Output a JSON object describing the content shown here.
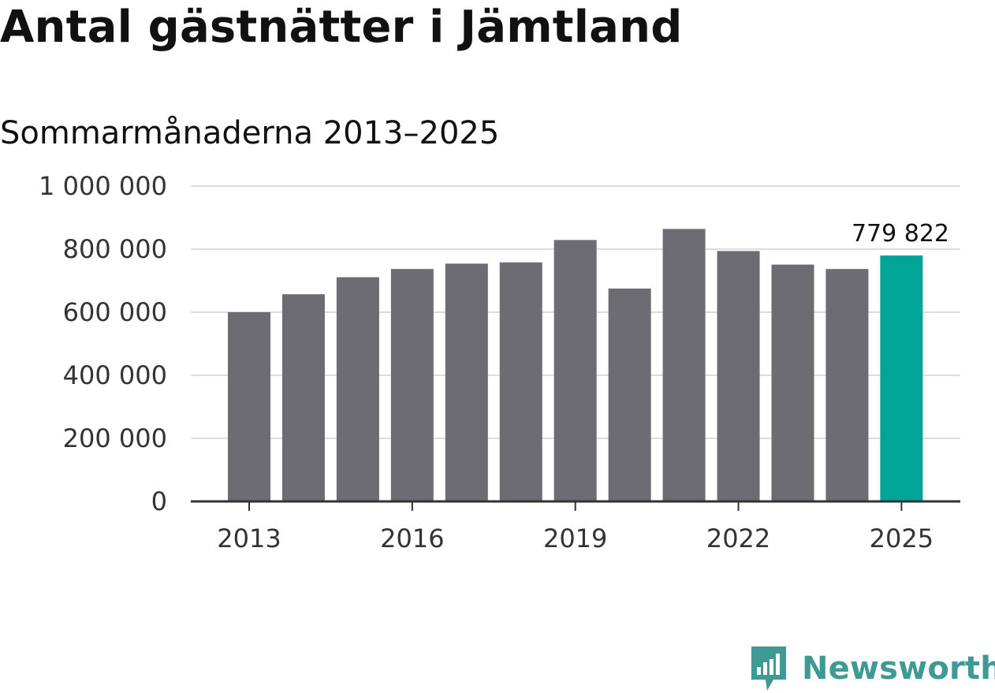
{
  "title": "Antal gästnätter i Jämtland",
  "subtitle": "Sommarmånaderna 2013–2025",
  "colors": {
    "bar": "#6d6c72",
    "highlight": "#00a598",
    "grid": "#dddddd",
    "axis": "#333333",
    "brand": "#3f9a95"
  },
  "chart_data": {
    "type": "bar",
    "title": "Antal gästnätter i Jämtland",
    "subtitle": "Sommarmånaderna 2013–2025",
    "xlabel": "",
    "ylabel": "",
    "categories": [
      "2013",
      "2014",
      "2015",
      "2016",
      "2017",
      "2018",
      "2019",
      "2020",
      "2021",
      "2022",
      "2023",
      "2024",
      "2025"
    ],
    "values": [
      600000,
      657000,
      711000,
      737000,
      754000,
      758000,
      829000,
      675000,
      864000,
      794000,
      751000,
      737000,
      779822
    ],
    "highlight_category": "2025",
    "annotation": {
      "category": "2025",
      "label": "779 822"
    },
    "ylim": [
      0,
      1000000
    ],
    "y_ticks": [
      0,
      200000,
      400000,
      600000,
      800000,
      1000000
    ],
    "y_tick_labels": [
      "0",
      "200 000",
      "400 000",
      "600 000",
      "800 000",
      "1 000 000"
    ],
    "x_tick_labels": [
      "2013",
      "2016",
      "2019",
      "2022",
      "2025"
    ],
    "grid": true,
    "legend": "none"
  },
  "branding": {
    "logo_text": "Newsworthy",
    "logo_icon": "newsworthy-logo-icon"
  }
}
